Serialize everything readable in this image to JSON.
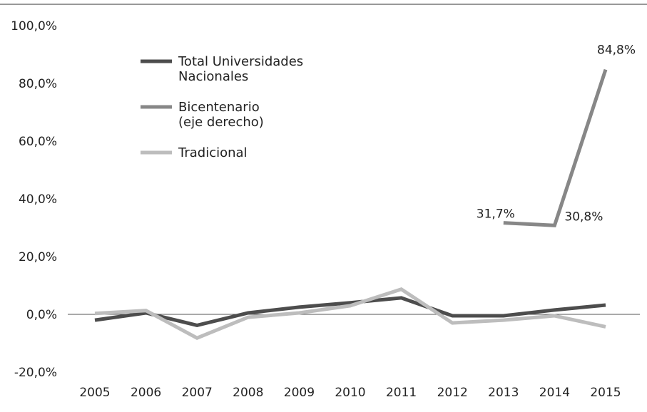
{
  "chart_data": {
    "type": "line",
    "title": "",
    "xlabel": "",
    "ylabel": "",
    "categories": [
      "2005",
      "2006",
      "2007",
      "2008",
      "2009",
      "2010",
      "2011",
      "2012",
      "2013",
      "2014",
      "2015"
    ],
    "ylim": [
      -20,
      100
    ],
    "yticks": [
      -20,
      0,
      20,
      40,
      60,
      80,
      100
    ],
    "ytick_labels": [
      "-20,0%",
      "0,0%",
      "20,0%",
      "40,0%",
      "60,0%",
      "80,0%",
      "100,0%"
    ],
    "grid": false,
    "legend_position": "top-left",
    "series": [
      {
        "name": "Total Universidades Nacionales",
        "legend_lines": [
          "Total Universidades",
          "Nacionales"
        ],
        "color": "#4d4d4d",
        "values": [
          -2.0,
          0.5,
          -3.8,
          0.5,
          2.5,
          4.0,
          5.7,
          -0.5,
          -0.5,
          1.5,
          3.2
        ]
      },
      {
        "name": "Bicentenario (eje derecho)",
        "legend_lines": [
          "Bicentenario",
          "(eje derecho)"
        ],
        "color": "#878787",
        "values": [
          null,
          null,
          null,
          null,
          null,
          null,
          null,
          null,
          31.7,
          30.8,
          84.8
        ]
      },
      {
        "name": "Tradicional",
        "legend_lines": [
          "Tradicional"
        ],
        "color": "#bdbdbd",
        "values": [
          0.3,
          1.3,
          -8.2,
          -1.0,
          0.5,
          3.0,
          8.7,
          -3.0,
          -2.0,
          -0.5,
          -4.3
        ]
      }
    ],
    "annotations": [
      {
        "series": 1,
        "index": 8,
        "text": "31,7%"
      },
      {
        "series": 1,
        "index": 9,
        "text": "30,8%"
      },
      {
        "series": 1,
        "index": 10,
        "text": "84,8%"
      }
    ]
  }
}
